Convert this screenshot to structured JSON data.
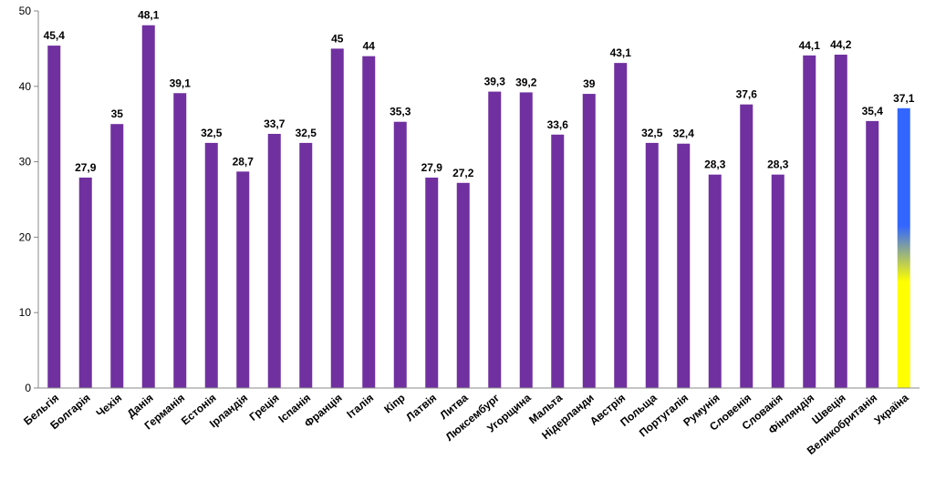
{
  "chart_data": {
    "type": "bar",
    "categories": [
      "Бельгія",
      "Болгарія",
      "Чехія",
      "Данія",
      "Германія",
      "Естонія",
      "Ірландія",
      "Греція",
      "Іспанія",
      "Франція",
      "Італія",
      "Кіпр",
      "Латвія",
      "Литва",
      "Люксембург",
      "Угорщина",
      "Мальта",
      "Нідерланди",
      "Австрія",
      "Польща",
      "Португалія",
      "Румунія",
      "Словенія",
      "Словакія",
      "Фінляндія",
      "Швеція",
      "Великобританія",
      "Україна"
    ],
    "values": [
      45.4,
      27.9,
      35,
      48.1,
      39.1,
      32.5,
      28.7,
      33.7,
      32.5,
      45,
      44,
      35.3,
      27.9,
      27.2,
      39.3,
      39.2,
      33.6,
      39,
      43.1,
      32.5,
      32.4,
      28.3,
      37.6,
      28.3,
      44.1,
      44.2,
      35.4,
      37.1
    ],
    "value_labels": [
      "45,4",
      "27,9",
      "35",
      "48,1",
      "39,1",
      "32,5",
      "28,7",
      "33,7",
      "32,5",
      "45",
      "44",
      "35,3",
      "27,9",
      "27,2",
      "39,3",
      "39,2",
      "33,6",
      "39",
      "43,1",
      "32,5",
      "32,4",
      "28,3",
      "37,6",
      "28,3",
      "44,1",
      "44,2",
      "35,4",
      "37,1"
    ],
    "y_ticks": [
      "0",
      "10",
      "20",
      "30",
      "40",
      "50"
    ],
    "ylim": [
      0,
      50
    ],
    "title": "",
    "xlabel": "",
    "ylabel": "",
    "grid": false,
    "bar_color": "#7030A0",
    "highlight": {
      "category": "Україна",
      "colors": [
        "#3366FF",
        "#FFFF00"
      ]
    }
  }
}
